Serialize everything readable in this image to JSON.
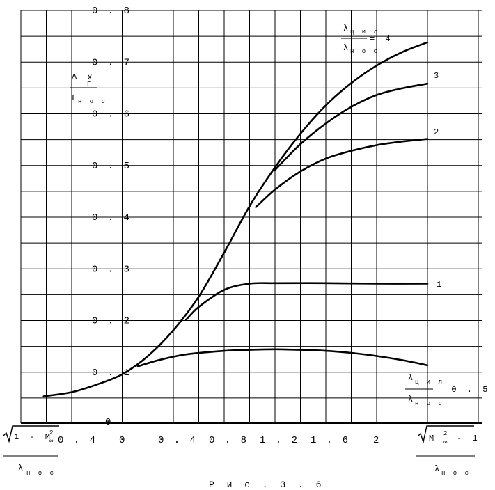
{
  "chart_data": {
    "type": "line",
    "y_axis": {
      "label_top": "Δ x",
      "label_top_sub": "F",
      "label_bottom": "L",
      "label_bottom_sub": "н о с",
      "range": [
        0,
        0.8
      ],
      "ticks": [
        "0",
        "0 . 1",
        "0 . 2",
        "0 . 3",
        "0 . 4",
        "0 . 5",
        "0 . 6",
        "0 . 7",
        "0 . 8"
      ]
    },
    "x_axis": {
      "left_ticks": [
        "0 . 4"
      ],
      "right_ticks": [
        "0",
        "0 . 4",
        "0 . 8",
        "1 . 2",
        "1 . 6",
        "2"
      ],
      "left_label_num": "1 - M",
      "left_label_sup": "2",
      "left_label_sub": "∞",
      "left_label_den": "λ",
      "left_label_den_sub": "н о с",
      "right_label_num": "M",
      "right_label_sup": "2",
      "right_label_sub": "∞",
      "right_label_tail": "- 1",
      "right_label_den": "λ",
      "right_label_den_sub": "н о с"
    },
    "param_label": {
      "num": "λ",
      "num_sub": "ц и л",
      "den": "λ",
      "den_sub": "н о с"
    },
    "series": [
      {
        "name": "4",
        "label_text": "= 4",
        "x": [
          -0.62,
          -0.4,
          -0.2,
          0,
          0.2,
          0.4,
          0.6,
          0.8,
          1.0,
          1.2,
          1.4,
          1.6,
          1.8,
          2.0,
          2.2,
          2.4
        ],
        "y": [
          0.052,
          0.06,
          0.075,
          0.095,
          0.13,
          0.18,
          0.245,
          0.33,
          0.42,
          0.495,
          0.56,
          0.615,
          0.658,
          0.692,
          0.718,
          0.737
        ]
      },
      {
        "name": "3",
        "label_text": "3",
        "x": [
          1.2,
          1.4,
          1.6,
          1.8,
          2.0,
          2.2,
          2.4
        ],
        "y": [
          0.49,
          0.54,
          0.58,
          0.612,
          0.635,
          0.648,
          0.657
        ]
      },
      {
        "name": "2",
        "label_text": "2",
        "x": [
          1.05,
          1.2,
          1.4,
          1.6,
          1.8,
          2.0,
          2.2,
          2.4
        ],
        "y": [
          0.418,
          0.452,
          0.487,
          0.512,
          0.527,
          0.538,
          0.545,
          0.55
        ]
      },
      {
        "name": "1",
        "label_text": "1",
        "x": [
          0.5,
          0.6,
          0.8,
          1.0,
          1.2,
          1.6,
          2.0,
          2.4
        ],
        "y": [
          0.2,
          0.225,
          0.258,
          0.27,
          0.271,
          0.271,
          0.27,
          0.27
        ]
      },
      {
        "name": "0.5",
        "label_text": "= 0 . 5",
        "x": [
          0.12,
          0.3,
          0.5,
          0.8,
          1.0,
          1.2,
          1.4,
          1.6,
          1.8,
          2.0,
          2.2,
          2.4
        ],
        "y": [
          0.11,
          0.123,
          0.133,
          0.14,
          0.142,
          0.143,
          0.142,
          0.14,
          0.136,
          0.13,
          0.122,
          0.112
        ]
      }
    ],
    "grid": true,
    "caption": "Р и с . 3 . 6"
  }
}
